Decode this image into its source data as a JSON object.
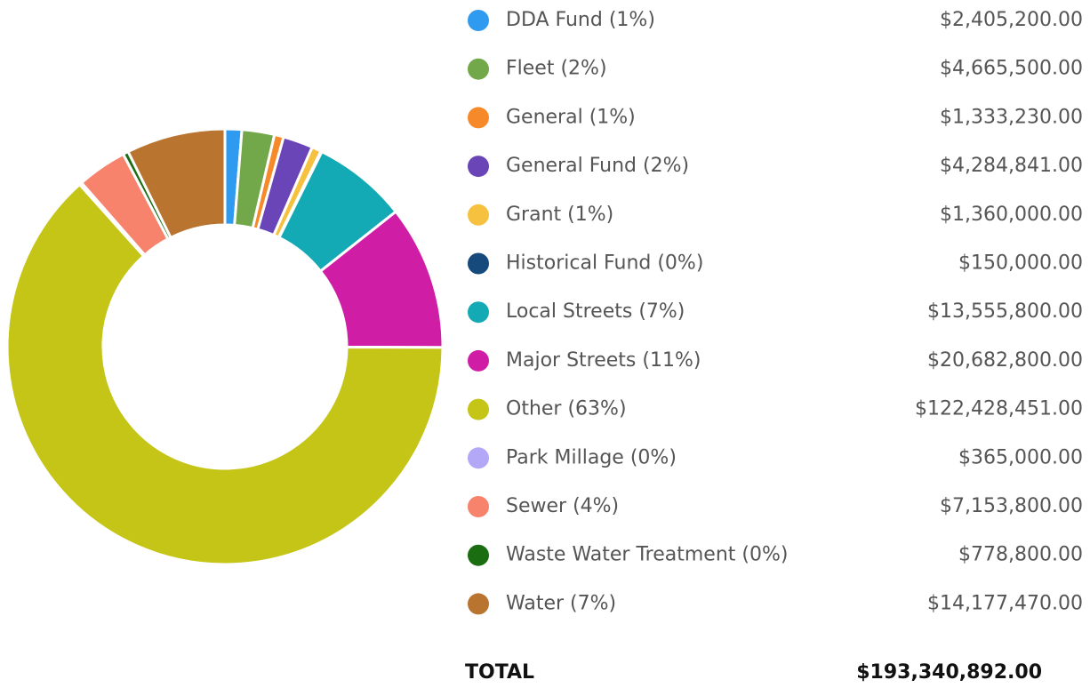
{
  "chart_data": {
    "type": "donut",
    "categories": [
      "DDA Fund (1%)",
      "Fleet (2%)",
      "General (1%)",
      "General Fund (2%)",
      "Grant (1%)",
      "Historical Fund (0%)",
      "Local Streets (7%)",
      "Major Streets (11%)",
      "Other (63%)",
      "Park Millage (0%)",
      "Sewer (4%)",
      "Waste Water Treatment (0%)",
      "Water (7%)"
    ],
    "values": [
      2405200,
      4665500,
      1333230,
      4284841,
      1360000,
      150000,
      13555800,
      20682800,
      122428451,
      365000,
      7153800,
      778800,
      14177470
    ],
    "value_labels": [
      "$2,405,200.00",
      "$4,665,500.00",
      "$1,333,230.00",
      "$4,284,841.00",
      "$1,360,000.00",
      "$150,000.00",
      "$13,555,800.00",
      "$20,682,800.00",
      "$122,428,451.00",
      "$365,000.00",
      "$7,153,800.00",
      "$778,800.00",
      "$14,177,470.00"
    ],
    "colors": [
      "#2f9bf0",
      "#72a84a",
      "#f68a2a",
      "#6a45b8",
      "#f7c140",
      "#174a7c",
      "#14aab5",
      "#cf1ea5",
      "#c5c518",
      "#b3a7f7",
      "#f7836d",
      "#1b6d12",
      "#b9742f"
    ],
    "total_label": "TOTAL",
    "total_value": "$193,340,892.00"
  }
}
